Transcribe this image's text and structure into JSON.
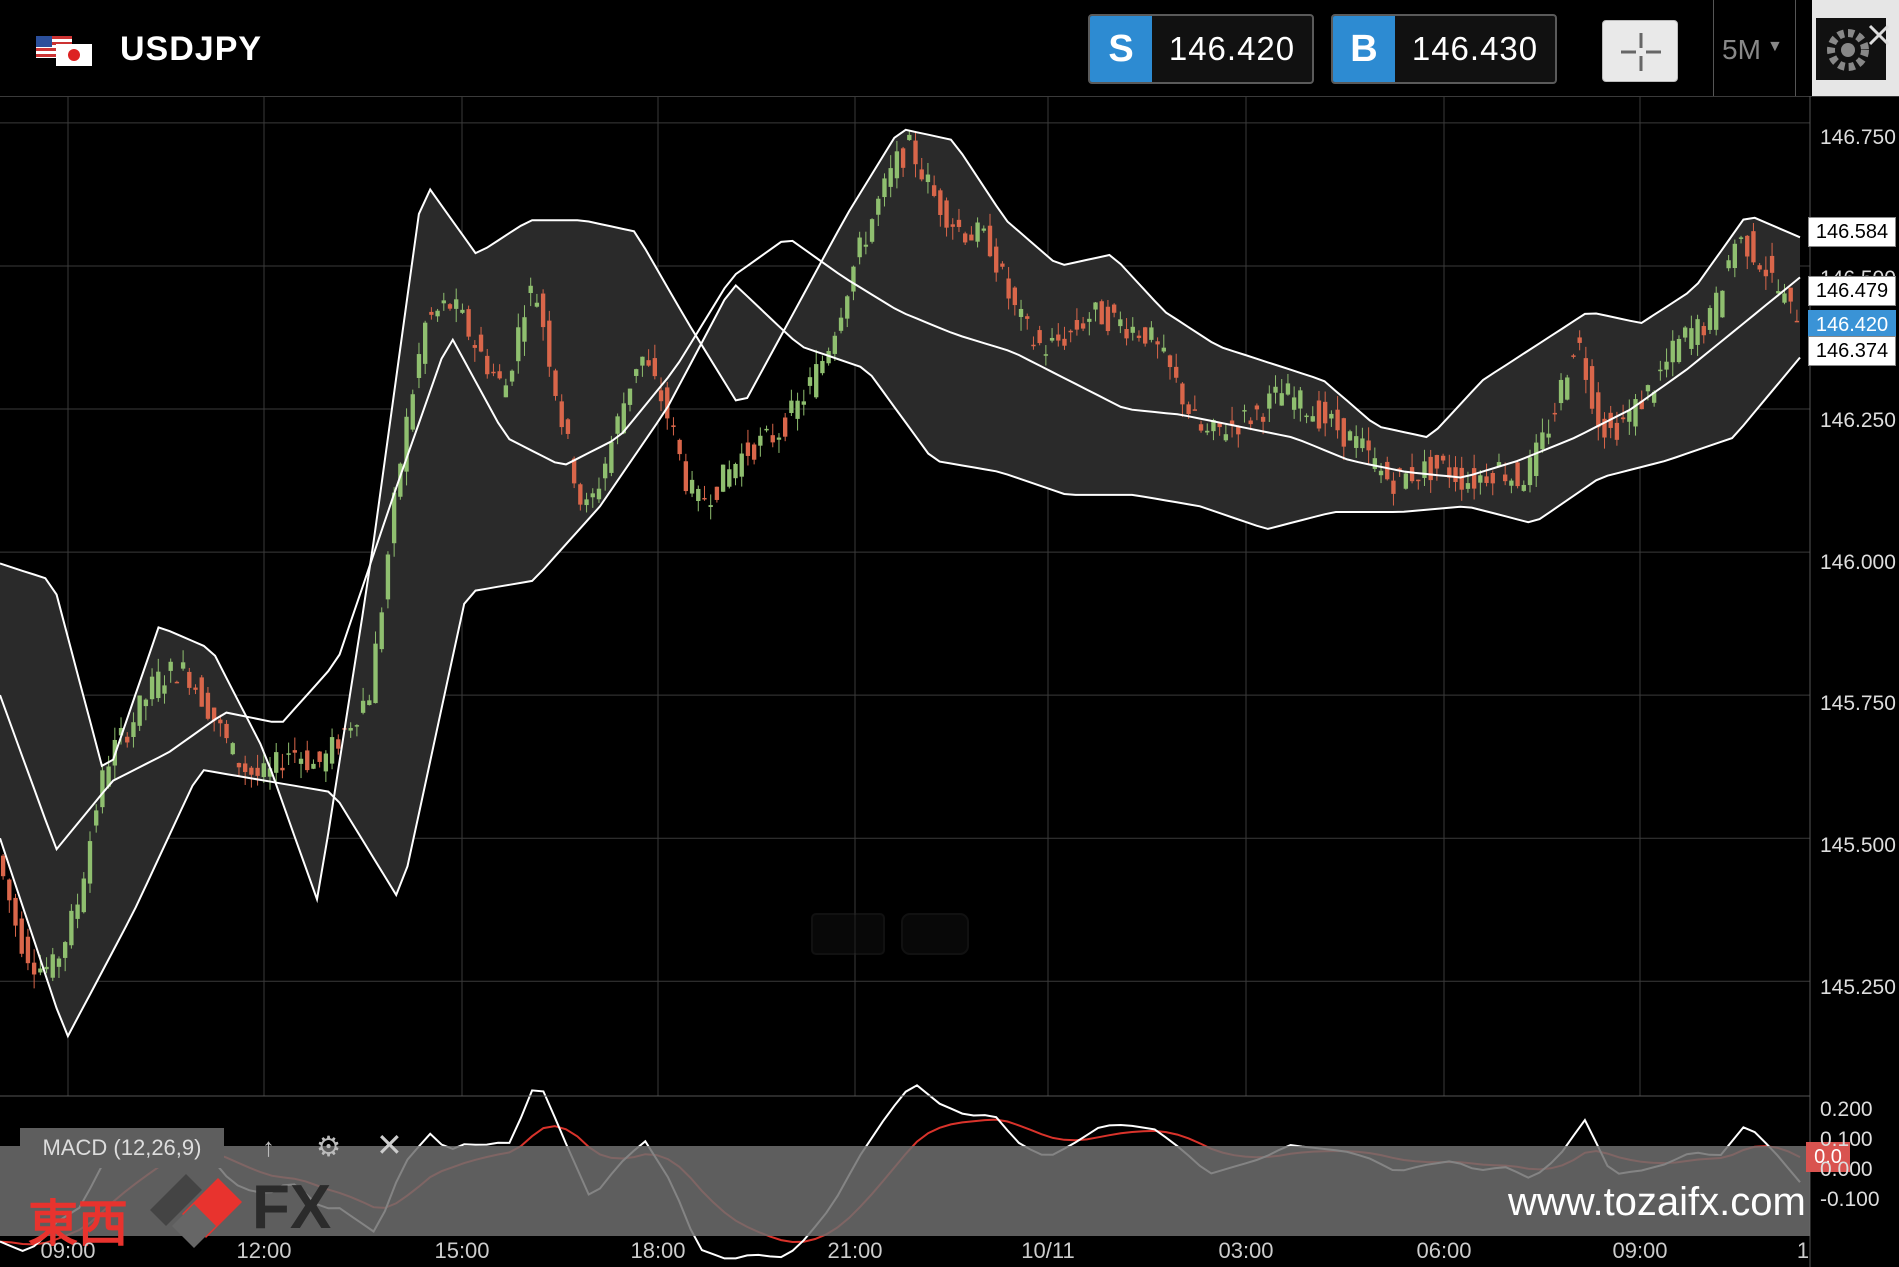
{
  "header": {
    "symbol": "USDJPY",
    "flag_icons": [
      "us-flag-icon",
      "jp-flag-icon"
    ],
    "sell": {
      "label": "S",
      "price": "146.420"
    },
    "buy": {
      "label": "B",
      "price": "146.430"
    },
    "crosshair_icon": "crosshair-icon",
    "timeframe": "5M",
    "settings_icon": "gear-icon"
  },
  "price_axis": {
    "ticks": [
      "146.750",
      "146.500",
      "146.250",
      "146.000",
      "145.750",
      "145.500",
      "145.250"
    ],
    "upper_band_label": "146.584",
    "middle_band_label": "146.479",
    "current_price_label": "146.420",
    "lower_band_label": "146.374"
  },
  "macd": {
    "label": "MACD (12,26,9)",
    "value": "0.0",
    "axis_ticks": [
      "0.200",
      "0.100",
      "0.000",
      "-0.100"
    ],
    "up_icon": "arrow-up-icon",
    "settings_icon": "gear-icon",
    "close_icon": "close-icon"
  },
  "time_axis": [
    "09:00",
    "12:00",
    "15:00",
    "18:00",
    "21:00",
    "10/11",
    "03:00",
    "06:00",
    "09:00",
    "1"
  ],
  "branding": {
    "kanji": "東西",
    "fx": "FX",
    "website": "www.tozaifx.com"
  },
  "colors": {
    "background": "#000000",
    "grid": "#3a3a3a",
    "band_fill": "#2a2a2a",
    "band_line": "#ffffff",
    "candle_up": "#8fbf6f",
    "candle_down": "#d9664a",
    "accent_blue": "#2d8bd2",
    "macd_signal": "#d9332b",
    "macd_line": "#ffffff"
  },
  "chart_data": {
    "type": "candlestick",
    "symbol": "USDJPY",
    "timeframe": "5M",
    "x_ticks": [
      "09:00",
      "12:00",
      "15:00",
      "18:00",
      "21:00",
      "10/11",
      "03:00",
      "06:00",
      "09:00",
      "1"
    ],
    "y_ticks": [
      146.75,
      146.5,
      146.25,
      146.0,
      145.75,
      145.5,
      145.25
    ],
    "ylim": [
      145.06,
      146.79
    ],
    "grid": true,
    "indicators": [
      "Bollinger Bands",
      "MACD (12,26,9)"
    ],
    "close_path": [
      145.47,
      145.3,
      145.26,
      145.38,
      145.63,
      145.7,
      145.78,
      145.8,
      145.72,
      145.63,
      145.6,
      145.66,
      145.62,
      145.69,
      145.76,
      146.15,
      146.4,
      146.44,
      146.35,
      146.28,
      146.5,
      146.25,
      146.05,
      146.2,
      146.35,
      146.25,
      146.08,
      146.12,
      146.18,
      146.2,
      146.26,
      146.35,
      146.5,
      146.62,
      146.72,
      146.62,
      146.56,
      146.55,
      146.42,
      146.35,
      146.38,
      146.42,
      146.4,
      146.38,
      146.3,
      146.2,
      146.22,
      146.24,
      146.28,
      146.25,
      146.22,
      146.18,
      146.12,
      146.14,
      146.15,
      146.12,
      146.15,
      146.12,
      146.22,
      146.38,
      146.2,
      146.24,
      146.3,
      146.38,
      146.4,
      146.56,
      146.5,
      146.42
    ],
    "upper_band": [
      145.98,
      145.95,
      145.6,
      145.87,
      145.83,
      145.65,
      145.39,
      145.98,
      146.65,
      146.52,
      146.58,
      146.58,
      146.56,
      146.4,
      146.25,
      146.42,
      146.59,
      146.74,
      146.72,
      146.58,
      146.5,
      146.52,
      146.42,
      146.36,
      146.33,
      146.3,
      146.22,
      146.2,
      146.3,
      146.36,
      146.42,
      146.4,
      146.46,
      146.59,
      146.55
    ],
    "middle_band": [
      145.75,
      145.48,
      145.6,
      145.65,
      145.72,
      145.7,
      145.81,
      146.1,
      146.38,
      146.2,
      146.15,
      146.2,
      146.32,
      146.48,
      146.55,
      146.48,
      146.42,
      146.38,
      146.35,
      146.3,
      146.25,
      146.24,
      146.22,
      146.2,
      146.16,
      146.14,
      146.13,
      146.16,
      146.2,
      146.25,
      146.32,
      146.4,
      146.48
    ],
    "lower_band": [
      145.5,
      145.15,
      145.37,
      145.62,
      145.6,
      145.58,
      145.39,
      145.93,
      145.95,
      146.08,
      146.25,
      146.47,
      146.36,
      146.32,
      146.16,
      146.14,
      146.1,
      146.1,
      146.08,
      146.04,
      146.07,
      146.07,
      146.08,
      146.05,
      146.13,
      146.16,
      146.2,
      146.34
    ]
  }
}
